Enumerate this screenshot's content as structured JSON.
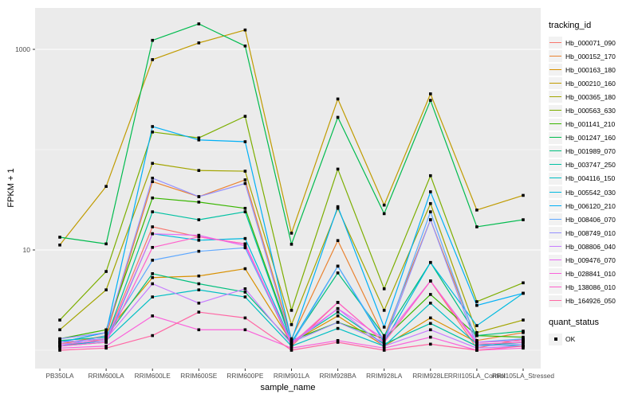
{
  "chart_data": {
    "type": "line",
    "title": "",
    "xlabel": "sample_name",
    "ylabel": "FPKM + 1",
    "y_scale": "log10",
    "legend_position": "right",
    "grid": true,
    "y_ticks": [
      "1000",
      "10"
    ],
    "y_tick_values": [
      1000,
      10
    ],
    "y_minor_values": [
      100,
      1
    ],
    "ylim": [
      0.66,
      2600
    ],
    "categories": [
      "PB350LA",
      "RRIM600LA",
      "RRIM600LE",
      "RRIM600SE",
      "RRIM600PE",
      "RRIM901LA",
      "RRIM928BA",
      "RRIM928LA",
      "RRIM928LE",
      "RRII105LA_Control",
      "RRII105LA_Stressed"
    ],
    "series": [
      {
        "name": "Hb_000071_090",
        "color": "#F8766D",
        "values": [
          1.1,
          1.3,
          17,
          13.5,
          11.5,
          1.1,
          3.0,
          1.2,
          4.9,
          1.05,
          1.3
        ]
      },
      {
        "name": "Hb_000152_170",
        "color": "#EA8331",
        "values": [
          1.15,
          1.4,
          48,
          34,
          50,
          1.3,
          12.4,
          1.35,
          20,
          1.25,
          1.5
        ]
      },
      {
        "name": "Hb_000163_180",
        "color": "#D89000",
        "values": [
          1.2,
          1.5,
          5.3,
          5.5,
          6.5,
          1.2,
          2.2,
          1.1,
          2.1,
          1.2,
          1.25
        ]
      },
      {
        "name": "Hb_000210_160",
        "color": "#C09B00",
        "values": [
          11.2,
          43,
          790,
          1160,
          1560,
          14.7,
          320,
          28,
          360,
          25,
          35
        ]
      },
      {
        "name": "Hb_000365_180",
        "color": "#A3A500",
        "values": [
          1.6,
          4.0,
          73,
          62,
          61,
          1.8,
          26,
          2.5,
          29,
          1.5,
          2.0
        ]
      },
      {
        "name": "Hb_000563_630",
        "color": "#7CAE00",
        "values": [
          2.0,
          6.1,
          150,
          131,
          215,
          2.5,
          64,
          4.1,
          55,
          3.05,
          4.7
        ]
      },
      {
        "name": "Hb_001141_210",
        "color": "#39B600",
        "values": [
          1.3,
          1.6,
          33,
          30,
          26,
          1.25,
          1.9,
          1.3,
          3.6,
          1.4,
          1.35
        ]
      },
      {
        "name": "Hb_001247_160",
        "color": "#00BB4E",
        "values": [
          13.4,
          11.5,
          1230,
          1795,
          1080,
          11.4,
          210,
          23,
          310,
          17,
          20
        ]
      },
      {
        "name": "Hb_001989_070",
        "color": "#00BF7D",
        "values": [
          1.25,
          1.35,
          5.8,
          4.6,
          3.8,
          1.2,
          5.9,
          1.4,
          7.5,
          1.4,
          1.55
        ]
      },
      {
        "name": "Hb_003747_250",
        "color": "#00C1A3",
        "values": [
          1.2,
          1.3,
          24,
          20,
          24,
          1.2,
          2.4,
          1.15,
          1.85,
          1.1,
          1.2
        ]
      },
      {
        "name": "Hb_004116_150",
        "color": "#00BFC4",
        "values": [
          1.1,
          1.25,
          3.4,
          4.0,
          3.4,
          1.1,
          1.65,
          1.1,
          2.95,
          1.15,
          1.1
        ]
      },
      {
        "name": "Hb_005542_030",
        "color": "#00BAE0",
        "values": [
          1.1,
          1.2,
          14.5,
          12.5,
          13,
          1.2,
          6.9,
          1.2,
          7.5,
          1.76,
          3.7
        ]
      },
      {
        "name": "Hb_006120_210",
        "color": "#00B0F6",
        "values": [
          1.2,
          1.5,
          170,
          125,
          120,
          1.25,
          27,
          1.7,
          38,
          2.8,
          3.7
        ]
      },
      {
        "name": "Hb_008406_070",
        "color": "#5EA8FF",
        "values": [
          1.1,
          1.4,
          7.9,
          9.7,
          10.5,
          1.15,
          6.9,
          1.25,
          24,
          1.2,
          1.3
        ]
      },
      {
        "name": "Hb_008749_010",
        "color": "#9590FF",
        "values": [
          1.3,
          1.5,
          52,
          34,
          46,
          1.2,
          1.9,
          1.2,
          20,
          1.1,
          1.15
        ]
      },
      {
        "name": "Hb_008806_040",
        "color": "#C77CFF",
        "values": [
          1.2,
          1.3,
          4.6,
          2.95,
          4.1,
          1.15,
          2.6,
          1.1,
          1.6,
          1.05,
          1.1
        ]
      },
      {
        "name": "Hb_009476_070",
        "color": "#E76BF3",
        "values": [
          1.15,
          1.25,
          14.5,
          14,
          11,
          1.2,
          2.6,
          1.3,
          4.9,
          1.2,
          1.25
        ]
      },
      {
        "name": "Hb_028841_010",
        "color": "#FA62DB",
        "values": [
          1.05,
          1.1,
          2.2,
          1.6,
          1.6,
          1.05,
          1.25,
          1.05,
          1.35,
          1.0,
          1.05
        ]
      },
      {
        "name": "Hb_138086_010",
        "color": "#FF61CC",
        "values": [
          1.1,
          1.2,
          10.6,
          13.5,
          11.5,
          1.15,
          3.0,
          1.2,
          4.9,
          1.15,
          1.2
        ]
      },
      {
        "name": "Hb_164926_050",
        "color": "#FF67A4",
        "values": [
          1.0,
          1.05,
          1.4,
          2.4,
          2.1,
          1.0,
          1.2,
          1.0,
          1.15,
          1.0,
          1.1
        ]
      }
    ]
  },
  "legend": {
    "tracking_title": "tracking_id",
    "quant_title": "quant_status",
    "quant_ok": "OK"
  },
  "colors": {
    "panel_bg": "#EBEBEB",
    "grid": "#FFFFFF",
    "key_bg": "#F2F2F2",
    "tick_text": "#4D4D4D",
    "point": "#000000",
    "tick_mark": "#333333"
  }
}
